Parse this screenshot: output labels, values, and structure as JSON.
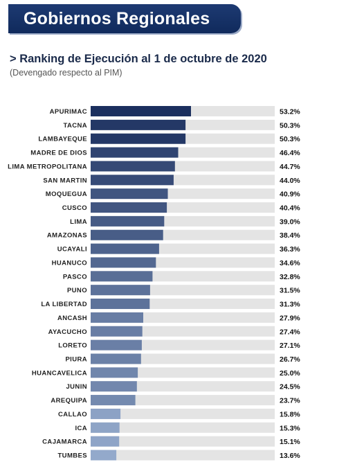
{
  "header": {
    "banner_title": "Gobiernos Regionales",
    "subtitle": "> Ranking de Ejecución al 1 de octubre de 2020",
    "note": "(Devengado respecto al PIM)"
  },
  "chart_data": {
    "type": "bar",
    "orientation": "horizontal",
    "title": "> Ranking de Ejecución al 1 de octubre de 2020",
    "subtitle": "(Devengado respecto al PIM)",
    "xlabel": "",
    "ylabel": "",
    "xlim": [
      0,
      100
    ],
    "grid": false,
    "legend": "none",
    "categories": [
      "APURIMAC",
      "TACNA",
      "LAMBAYEQUE",
      "MADRE DE DIOS",
      "LIMA METROPOLITANA",
      "SAN MARTIN",
      "MOQUEGUA",
      "CUSCO",
      "LIMA",
      "AMAZONAS",
      "UCAYALI",
      "HUANUCO",
      "PASCO",
      "PUNO",
      "LA LIBERTAD",
      "ANCASH",
      "AYACUCHO",
      "LORETO",
      "PIURA",
      "HUANCAVELICA",
      "JUNIN",
      "AREQUIPA",
      "CALLAO",
      "ICA",
      "CAJAMARCA",
      "TUMBES"
    ],
    "values": [
      53.2,
      50.3,
      50.3,
      46.4,
      44.7,
      44.0,
      40.9,
      40.4,
      39.0,
      38.4,
      36.3,
      34.6,
      32.8,
      31.5,
      31.3,
      27.9,
      27.4,
      27.1,
      26.7,
      25.0,
      24.5,
      23.7,
      15.8,
      15.3,
      15.1,
      13.6
    ],
    "value_labels": [
      "53.2%",
      "50.3%",
      "50.3%",
      "46.4%",
      "44.7%",
      "44.0%",
      "40.9%",
      "40.4%",
      "39.0%",
      "38.4%",
      "36.3%",
      "34.6%",
      "32.8%",
      "31.5%",
      "31.3%",
      "27.9%",
      "27.4%",
      "27.1%",
      "26.7%",
      "25.0%",
      "24.5%",
      "23.7%",
      "15.8%",
      "15.3%",
      "15.1%",
      "13.6%"
    ],
    "colors": {
      "bar_dark": "#1b2f5e",
      "bar_light": "#93a9cb",
      "track": "#e4e4e4",
      "text": "#222222"
    }
  }
}
